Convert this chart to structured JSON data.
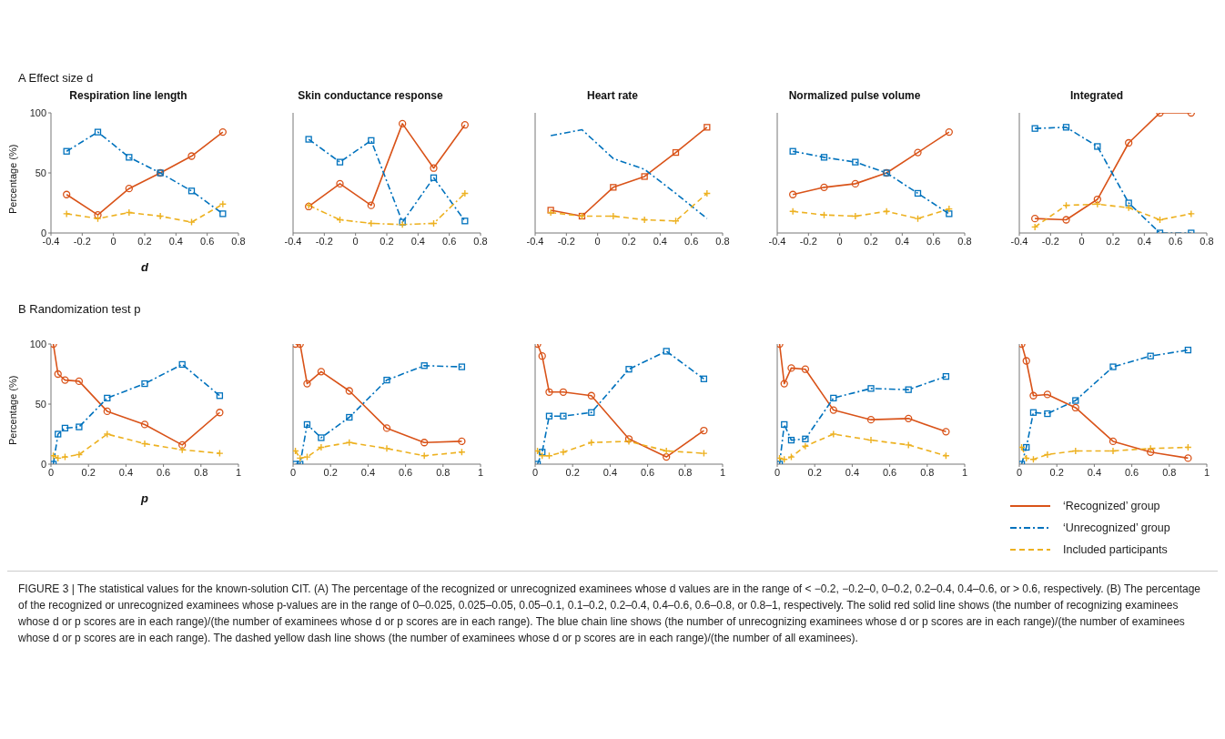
{
  "chart_data": [
    {
      "type": "line",
      "title": "Respiration line length",
      "annotations": [
        "A Effect size d"
      ],
      "xlabel": "d",
      "ylabel": "Percentage (%)",
      "x": [
        -0.3,
        -0.1,
        0.1,
        0.3,
        0.5,
        0.7
      ],
      "xlim": [
        -0.4,
        0.8
      ],
      "xticks": [
        -0.4,
        -0.2,
        0,
        0.2,
        0.4,
        0.6,
        0.8
      ],
      "ylim": [
        0,
        100
      ],
      "yticks": [
        0,
        50,
        100
      ],
      "series": [
        {
          "color": "#d95319",
          "marker": "circle",
          "line_style": "solid",
          "values": [
            32,
            15,
            37,
            50,
            64,
            84
          ]
        },
        {
          "color": "#0072bd",
          "marker": "square",
          "line_style": "dashdot",
          "values": [
            68,
            84,
            63,
            50,
            35,
            16
          ]
        },
        {
          "color": "#edb120",
          "marker": "cross",
          "line_style": "dashed",
          "values": [
            16,
            12,
            17,
            14,
            9,
            24
          ]
        }
      ]
    },
    {
      "type": "line",
      "title": "Skin conductance response",
      "x": [
        -0.3,
        -0.1,
        0.1,
        0.3,
        0.5,
        0.7
      ],
      "xlim": [
        -0.4,
        0.8
      ],
      "xticks": [
        -0.4,
        -0.2,
        0,
        0.2,
        0.4,
        0.6,
        0.8
      ],
      "ylim": [
        0,
        100
      ],
      "yticks": [
        0,
        50,
        100
      ],
      "tick_labels": "x",
      "series": [
        {
          "color": "#d95319",
          "marker": "circle",
          "line_style": "solid",
          "values": [
            22,
            41,
            23,
            91,
            54,
            90
          ]
        },
        {
          "color": "#0072bd",
          "marker": "square",
          "line_style": "dashdot",
          "values": [
            78,
            59,
            77,
            9,
            46,
            10
          ]
        },
        {
          "color": "#edb120",
          "marker": "cross",
          "line_style": "dashdot",
          "values": [
            23,
            11,
            8,
            7,
            8,
            33
          ]
        }
      ]
    },
    {
      "type": "line",
      "title": "Heart rate",
      "x": [
        -0.3,
        -0.1,
        0.1,
        0.3,
        0.5,
        0.7
      ],
      "xlim": [
        -0.4,
        0.8
      ],
      "xticks": [
        -0.4,
        -0.2,
        0,
        0.2,
        0.4,
        0.6,
        0.8
      ],
      "ylim": [
        0,
        100
      ],
      "yticks": [
        0,
        50,
        100
      ],
      "tick_labels": "x",
      "series": [
        {
          "color": "#d95319",
          "marker": "square",
          "line_style": "solid",
          "values": [
            19,
            14,
            38,
            47,
            67,
            88
          ]
        },
        {
          "color": "#0072bd",
          "marker": "none",
          "line_style": "dashdot",
          "values": [
            81,
            86,
            62,
            53,
            33,
            12
          ]
        },
        {
          "color": "#edb120",
          "marker": "cross",
          "line_style": "dashed",
          "values": [
            17,
            14,
            14,
            11,
            10,
            33
          ]
        }
      ]
    },
    {
      "type": "line",
      "title": "Normalized pulse volume",
      "x": [
        -0.3,
        -0.1,
        0.1,
        0.3,
        0.5,
        0.7
      ],
      "xlim": [
        -0.4,
        0.8
      ],
      "xticks": [
        -0.4,
        -0.2,
        0,
        0.2,
        0.4,
        0.6,
        0.8
      ],
      "ylim": [
        0,
        100
      ],
      "yticks": [
        0,
        50,
        100
      ],
      "tick_labels": "x",
      "series": [
        {
          "color": "#d95319",
          "marker": "circle",
          "line_style": "solid",
          "values": [
            32,
            38,
            41,
            50,
            67,
            84
          ]
        },
        {
          "color": "#0072bd",
          "marker": "square",
          "line_style": "dashdot",
          "values": [
            68,
            63,
            59,
            50,
            33,
            16
          ]
        },
        {
          "color": "#edb120",
          "marker": "cross",
          "line_style": "dashed",
          "values": [
            18,
            15,
            14,
            18,
            12,
            20
          ]
        }
      ]
    },
    {
      "type": "line",
      "title": "Integrated",
      "x": [
        -0.3,
        -0.1,
        0.1,
        0.3,
        0.5,
        0.7
      ],
      "xlim": [
        -0.4,
        0.8
      ],
      "xticks": [
        -0.4,
        -0.2,
        0,
        0.2,
        0.4,
        0.6,
        0.8
      ],
      "ylim": [
        0,
        100
      ],
      "yticks": [
        0,
        50,
        100
      ],
      "tick_labels": "x",
      "series": [
        {
          "color": "#d95319",
          "marker": "circle",
          "line_style": "solid",
          "values": [
            12,
            11,
            28,
            75,
            100,
            100
          ]
        },
        {
          "color": "#0072bd",
          "marker": "square",
          "line_style": "dashdot",
          "values": [
            87,
            88,
            72,
            25,
            0,
            0
          ]
        },
        {
          "color": "#edb120",
          "marker": "cross",
          "line_style": "dashed",
          "values": [
            5,
            23,
            24,
            21,
            11,
            16
          ]
        }
      ]
    },
    {
      "type": "line",
      "annotations": [
        "B Randomization test p"
      ],
      "xlabel": "p",
      "ylabel": "Percentage (%)",
      "x": [
        0.0125,
        0.0375,
        0.075,
        0.15,
        0.3,
        0.5,
        0.7,
        0.9
      ],
      "xlim": [
        0,
        1
      ],
      "xticks": [
        0,
        0.2,
        0.4,
        0.6,
        0.8,
        1
      ],
      "ylim": [
        0,
        100
      ],
      "yticks": [
        0,
        50,
        100
      ],
      "series": [
        {
          "color": "#d95319",
          "marker": "circle",
          "line_style": "solid",
          "values": [
            100,
            75,
            70,
            69,
            44,
            33,
            16,
            43
          ]
        },
        {
          "color": "#0072bd",
          "marker": "square",
          "line_style": "dashdot",
          "values": [
            0,
            25,
            30,
            31,
            55,
            67,
            83,
            57
          ]
        },
        {
          "color": "#edb120",
          "marker": "cross",
          "line_style": "dashed",
          "values": [
            7,
            5,
            6,
            8,
            25,
            17,
            12,
            9
          ]
        }
      ]
    },
    {
      "type": "line",
      "x": [
        0.0125,
        0.0375,
        0.075,
        0.15,
        0.3,
        0.5,
        0.7,
        0.9
      ],
      "xlim": [
        0,
        1
      ],
      "xticks": [
        0,
        0.2,
        0.4,
        0.6,
        0.8,
        1
      ],
      "ylim": [
        0,
        100
      ],
      "yticks": [
        0,
        50,
        100
      ],
      "tick_labels": "x",
      "series": [
        {
          "color": "#d95319",
          "marker": "circle",
          "line_style": "solid",
          "values": [
            100,
            100,
            67,
            77,
            61,
            30,
            18,
            19
          ]
        },
        {
          "color": "#0072bd",
          "marker": "square",
          "line_style": "dashdot",
          "values": [
            0,
            0,
            33,
            22,
            39,
            70,
            82,
            81
          ]
        },
        {
          "color": "#edb120",
          "marker": "cross",
          "line_style": "dashed",
          "values": [
            11,
            5,
            6,
            14,
            18,
            13,
            7,
            10
          ]
        }
      ]
    },
    {
      "type": "line",
      "x": [
        0.0125,
        0.0375,
        0.075,
        0.15,
        0.3,
        0.5,
        0.7,
        0.9
      ],
      "xlim": [
        0,
        1
      ],
      "xticks": [
        0,
        0.2,
        0.4,
        0.6,
        0.8,
        1
      ],
      "ylim": [
        0,
        100
      ],
      "yticks": [
        0,
        50,
        100
      ],
      "tick_labels": "x",
      "series": [
        {
          "color": "#d95319",
          "marker": "circle",
          "line_style": "solid",
          "values": [
            100,
            90,
            60,
            60,
            57,
            21,
            6,
            28
          ]
        },
        {
          "color": "#0072bd",
          "marker": "square",
          "line_style": "dashdot",
          "values": [
            0,
            10,
            40,
            40,
            43,
            79,
            94,
            71
          ]
        },
        {
          "color": "#edb120",
          "marker": "cross",
          "line_style": "dashed",
          "values": [
            11,
            7,
            7,
            10,
            18,
            19,
            11,
            9
          ]
        }
      ]
    },
    {
      "type": "line",
      "x": [
        0.0125,
        0.0375,
        0.075,
        0.15,
        0.3,
        0.5,
        0.7,
        0.9
      ],
      "xlim": [
        0,
        1
      ],
      "xticks": [
        0,
        0.2,
        0.4,
        0.6,
        0.8,
        1
      ],
      "ylim": [
        0,
        100
      ],
      "yticks": [
        0,
        50,
        100
      ],
      "tick_labels": "x",
      "series": [
        {
          "color": "#d95319",
          "marker": "circle",
          "line_style": "solid",
          "values": [
            100,
            67,
            80,
            79,
            45,
            37,
            38,
            27
          ]
        },
        {
          "color": "#0072bd",
          "marker": "square",
          "line_style": "dashdot",
          "values": [
            0,
            33,
            20,
            21,
            55,
            63,
            62,
            73
          ]
        },
        {
          "color": "#edb120",
          "marker": "cross",
          "line_style": "dashed",
          "values": [
            5,
            4,
            6,
            15,
            25,
            20,
            16,
            7
          ]
        }
      ]
    },
    {
      "type": "line",
      "legend": "bottom",
      "x": [
        0.0125,
        0.0375,
        0.075,
        0.15,
        0.3,
        0.5,
        0.7,
        0.9
      ],
      "xlim": [
        0,
        1
      ],
      "xticks": [
        0,
        0.2,
        0.4,
        0.6,
        0.8,
        1
      ],
      "ylim": [
        0,
        100
      ],
      "yticks": [
        0,
        50,
        100
      ],
      "tick_labels": "x",
      "annotations": [
        "FIGURE 3 | The statistical values for the known-solution CIT. (A) The percentage of the recognized or unrecognized examinees whose d values are in the range of < −0.2, −0.2–0, 0–0.2, 0.2–0.4, 0.4–0.6, or > 0.6, respectively. (B) The percentage of the recognized or unrecognized examinees whose p-values are in the range of 0–0.025, 0.025–0.05, 0.05–0.1, 0.1–0.2, 0.2–0.4, 0.4–0.6, 0.6–0.8, or 0.8–1, respectively. The solid red solid line shows (the number of recognizing examinees whose d or p scores are in each range)/(the number of examinees whose d or p scores are in each range). The blue chain line shows (the number of unrecognizing examinees whose d or p scores are in each range)/(the number of examinees whose d or p scores are in each range). The dashed yellow dash line shows (the number of examinees whose d or p scores are in each range)/(the number of all examinees)."
      ],
      "series": [
        {
          "name": "‘Recognized’ group",
          "color": "#d95319",
          "marker": "circle",
          "line_style": "solid",
          "values": [
            100,
            86,
            57,
            58,
            47,
            19,
            10,
            5
          ]
        },
        {
          "name": "‘Unrecognized’ group",
          "color": "#0072bd",
          "marker": "square",
          "line_style": "dashdot",
          "values": [
            0,
            14,
            43,
            42,
            53,
            81,
            90,
            95
          ]
        },
        {
          "name": "Included participants",
          "color": "#edb120",
          "marker": "cross",
          "line_style": "dashed",
          "values": [
            14,
            5,
            4,
            8,
            11,
            11,
            13,
            14
          ]
        }
      ]
    }
  ]
}
